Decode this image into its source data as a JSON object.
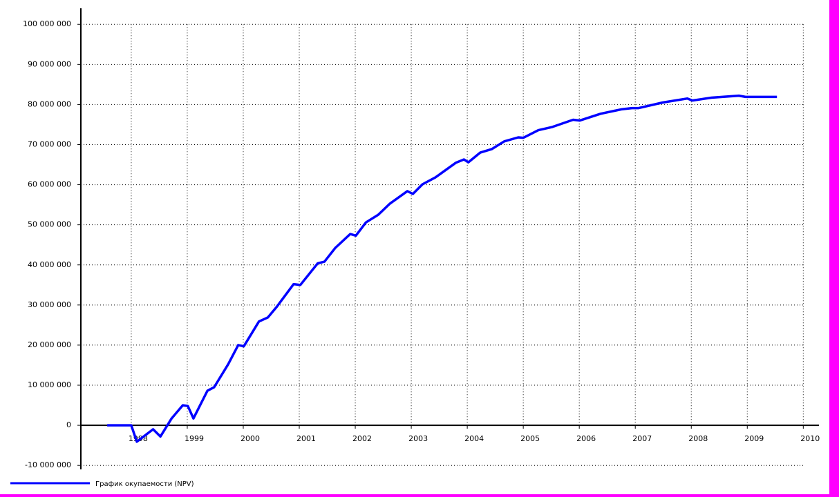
{
  "chart_data": {
    "type": "line",
    "x": [
      1997.57,
      1998.0,
      1998.1,
      1998.39,
      1998.52,
      1998.72,
      1998.92,
      1999.01,
      1999.11,
      1999.36,
      1999.48,
      1999.73,
      1999.91,
      2000.01,
      2000.28,
      2000.44,
      2000.59,
      2000.9,
      2001.02,
      2001.33,
      2001.45,
      2001.64,
      2001.91,
      2002.01,
      2002.19,
      2002.41,
      2002.62,
      2002.93,
      2003.03,
      2003.2,
      2003.43,
      2003.8,
      2003.94,
      2004.02,
      2004.23,
      2004.44,
      2004.66,
      2004.91,
      2005.0,
      2005.27,
      2005.52,
      2005.89,
      2006.01,
      2006.38,
      2006.75,
      2006.94,
      2007.06,
      2007.49,
      2007.93,
      2008.02,
      2008.36,
      2008.85,
      2008.97,
      2009.53
    ],
    "series": [
      {
        "name": "График окупаемости (NPV)",
        "color": "#0000ff",
        "values": [
          0,
          0,
          -4100000,
          -1000000,
          -2800000,
          1700000,
          5000000,
          4800000,
          1700000,
          8600000,
          9500000,
          15200000,
          20000000,
          19700000,
          25900000,
          26900000,
          29400000,
          35200000,
          35000000,
          40400000,
          40800000,
          44200000,
          47700000,
          47300000,
          50600000,
          52500000,
          55300000,
          58400000,
          57700000,
          60100000,
          61800000,
          65500000,
          66300000,
          65600000,
          68000000,
          68900000,
          70800000,
          71800000,
          71700000,
          73600000,
          74400000,
          76200000,
          76000000,
          77700000,
          78800000,
          79100000,
          79100000,
          80500000,
          81500000,
          81000000,
          81700000,
          82200000,
          81900000,
          81900000
        ]
      }
    ],
    "xlim": [
      1997.1,
      2010.28
    ],
    "xticks": [
      1998,
      1999,
      2000,
      2001,
      2002,
      2003,
      2004,
      2005,
      2006,
      2007,
      2008,
      2009,
      2010
    ],
    "ylim": [
      -11000000,
      104000000
    ],
    "yticks": [
      {
        "value": -10000000,
        "label": "-10 000 000"
      },
      0,
      {
        "value": 10000000,
        "label": "10 000 000"
      },
      {
        "value": 20000000,
        "label": "20 000 000"
      },
      {
        "value": 30000000,
        "label": "30 000 000"
      },
      {
        "value": 40000000,
        "label": "40 000 000"
      },
      {
        "value": 50000000,
        "label": "50 000 000"
      },
      {
        "value": 60000000,
        "label": "60 000 000"
      },
      {
        "value": 70000000,
        "label": "70 000 000"
      },
      {
        "value": 80000000,
        "label": "80 000 000"
      },
      {
        "value": 90000000,
        "label": "90 000 000"
      },
      {
        "value": 100000000,
        "label": "100 000 000"
      }
    ],
    "grid": true
  }
}
